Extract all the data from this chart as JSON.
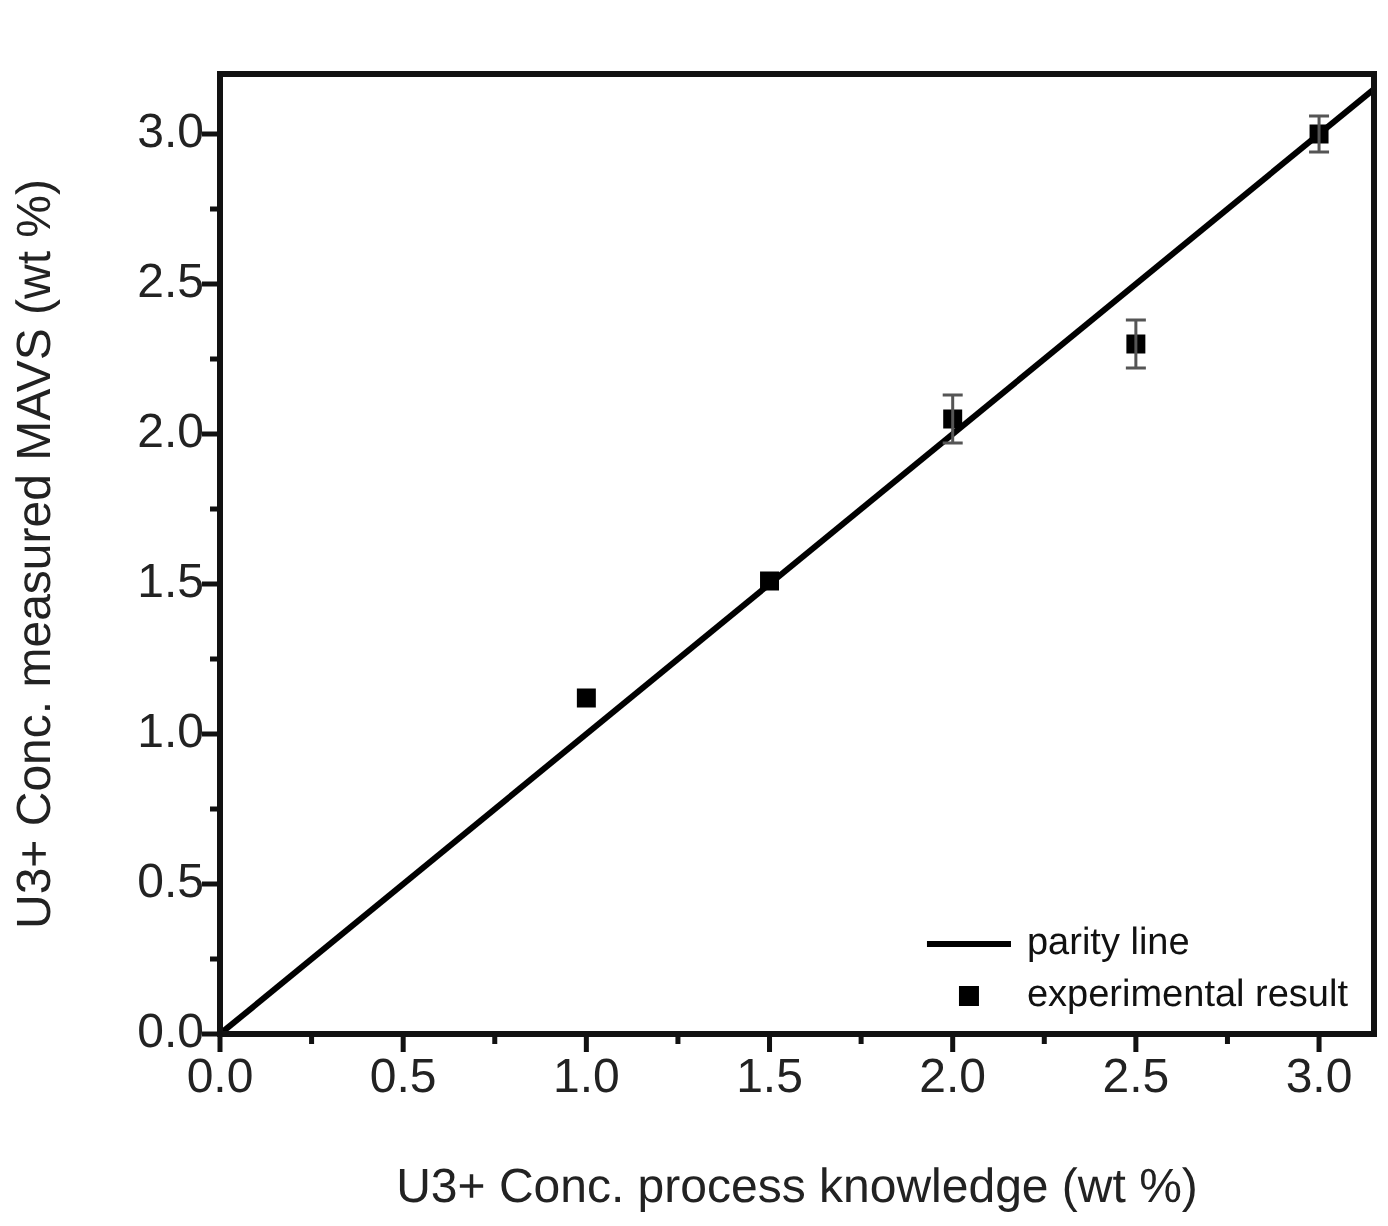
{
  "chart_data": {
    "type": "scatter",
    "xlabel": "U3+ Conc. process knowledge (wt %)",
    "ylabel": "U3+ Conc. measured MAVS (wt %)",
    "xlim": [
      0,
      3.15
    ],
    "ylim": [
      0,
      3.2
    ],
    "xticks": [
      {
        "value": 0,
        "label": "0.0"
      },
      {
        "value": 0.25,
        "label": null
      },
      {
        "value": 0.5,
        "label": "0.5"
      },
      {
        "value": 0.75,
        "label": null
      },
      {
        "value": 1,
        "label": "1.0"
      },
      {
        "value": 1.25,
        "label": null
      },
      {
        "value": 1.5,
        "label": "1.5"
      },
      {
        "value": 1.75,
        "label": null
      },
      {
        "value": 2,
        "label": "2.0"
      },
      {
        "value": 2.25,
        "label": null
      },
      {
        "value": 2.5,
        "label": "2.5"
      },
      {
        "value": 2.75,
        "label": null
      },
      {
        "value": 3,
        "label": "3.0"
      }
    ],
    "yticks": [
      {
        "value": 0,
        "label": "0.0"
      },
      {
        "value": 0.25,
        "label": null
      },
      {
        "value": 0.5,
        "label": "0.5"
      },
      {
        "value": 0.75,
        "label": null
      },
      {
        "value": 1,
        "label": "1.0"
      },
      {
        "value": 1.25,
        "label": null
      },
      {
        "value": 1.5,
        "label": "1.5"
      },
      {
        "value": 1.75,
        "label": null
      },
      {
        "value": 2,
        "label": "2.0"
      },
      {
        "value": 2.25,
        "label": null
      },
      {
        "value": 2.5,
        "label": "2.5"
      },
      {
        "value": 2.75,
        "label": null
      },
      {
        "value": 3,
        "label": "3.0"
      }
    ],
    "series": [
      {
        "name": "parity line",
        "type": "line",
        "color": "#000000",
        "line_style": "solid",
        "marker": "none",
        "x": [
          0,
          3.15
        ],
        "values": [
          0,
          3.15
        ]
      },
      {
        "name": "experimental result",
        "type": "scatter",
        "color": "#000000",
        "marker": "square",
        "x": [
          1.0,
          1.5,
          2.0,
          2.5,
          3.0
        ],
        "values": [
          1.12,
          1.51,
          2.05,
          2.3,
          3.0
        ],
        "errors": [
          null,
          null,
          0.08,
          0.08,
          0.06
        ]
      }
    ],
    "legend": "bottom right",
    "grid": false
  }
}
